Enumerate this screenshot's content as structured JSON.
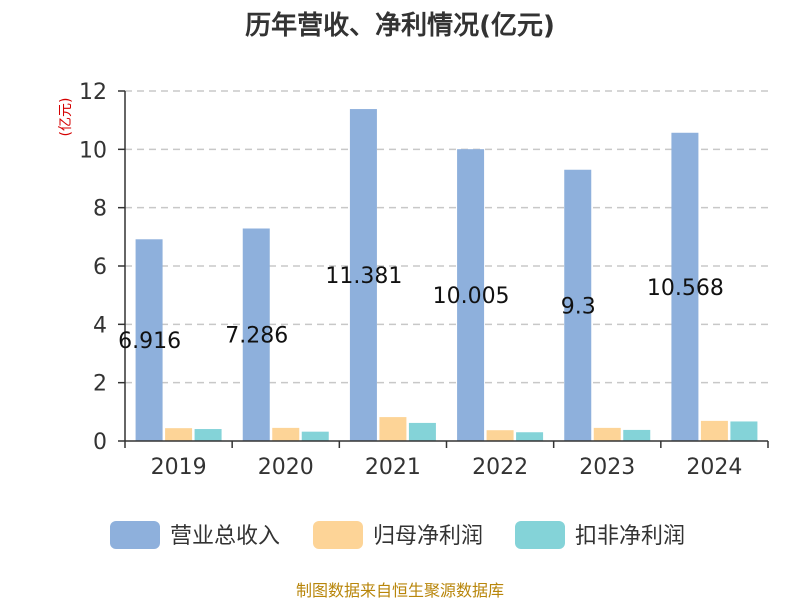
{
  "chart_data": {
    "type": "bar",
    "title": "历年营收、净利情况(亿元)",
    "unit_label": "(亿元)",
    "categories": [
      "2019",
      "2020",
      "2021",
      "2022",
      "2023",
      "2024"
    ],
    "series": [
      {
        "name": "营业总收入",
        "color": "#8eb0dc",
        "values": [
          6.916,
          7.286,
          11.381,
          10.005,
          9.3,
          10.568
        ]
      },
      {
        "name": "归母净利润",
        "color": "#fdd497",
        "values": [
          0.44,
          0.45,
          0.82,
          0.37,
          0.45,
          0.69
        ]
      },
      {
        "name": "扣非净利润",
        "color": "#84d3d8",
        "values": [
          0.41,
          0.32,
          0.62,
          0.3,
          0.38,
          0.67
        ]
      }
    ],
    "data_labels": [
      "6.916",
      "7.286",
      "11.381",
      "10.005",
      "9.3",
      "10.568"
    ],
    "ylim": [
      0,
      12
    ],
    "yticks": [
      0,
      2,
      4,
      6,
      8,
      10,
      12
    ],
    "grid": true,
    "legend": "bottom",
    "source": "制图数据来自恒生聚源数据库"
  }
}
